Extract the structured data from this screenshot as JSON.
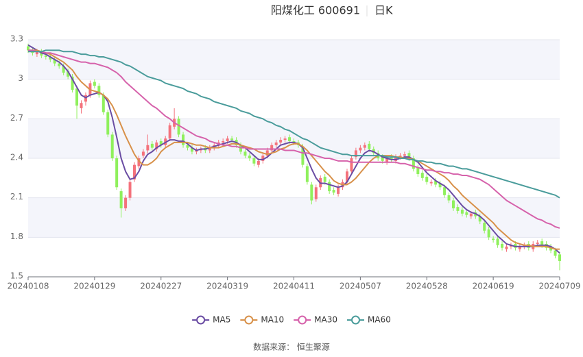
{
  "chart_data": {
    "type": "candlestick",
    "title": "阳煤化工 600691",
    "subtitle": "日K",
    "source": "数据来源： 恒生聚源",
    "categories": [
      "20240108",
      null,
      null,
      null,
      null,
      null,
      null,
      null,
      null,
      null,
      null,
      null,
      null,
      null,
      null,
      "20240129",
      null,
      null,
      null,
      null,
      null,
      null,
      null,
      null,
      null,
      null,
      null,
      null,
      null,
      null,
      "20240227",
      null,
      null,
      null,
      null,
      null,
      null,
      null,
      null,
      null,
      null,
      null,
      null,
      null,
      null,
      "20240319",
      null,
      null,
      null,
      null,
      null,
      null,
      null,
      null,
      null,
      null,
      null,
      null,
      null,
      null,
      "20240411",
      null,
      null,
      null,
      null,
      null,
      null,
      null,
      null,
      null,
      null,
      null,
      null,
      null,
      null,
      "20240507",
      null,
      null,
      null,
      null,
      null,
      null,
      null,
      null,
      null,
      null,
      null,
      null,
      null,
      null,
      "20240528",
      null,
      null,
      null,
      null,
      null,
      null,
      null,
      null,
      null,
      null,
      null,
      null,
      null,
      null,
      "20240619",
      null,
      null,
      null,
      null,
      null,
      null,
      null,
      null,
      null,
      null,
      null,
      null,
      null,
      null,
      "20240709"
    ],
    "open": [
      3.25,
      3.22,
      3.19,
      3.21,
      3.18,
      3.17,
      3.15,
      3.12,
      3.1,
      3.06,
      3.02,
      2.93,
      2.78,
      2.83,
      2.88,
      2.98,
      2.95,
      2.88,
      2.75,
      2.58,
      2.4,
      2.15,
      2.02,
      2.1,
      2.24,
      2.34,
      2.42,
      2.46,
      2.51,
      2.47,
      2.53,
      2.5,
      2.55,
      2.64,
      2.7,
      2.58,
      2.5,
      2.48,
      2.45,
      2.46,
      2.48,
      2.46,
      2.48,
      2.5,
      2.52,
      2.53,
      2.55,
      2.54,
      2.5,
      2.45,
      2.42,
      2.4,
      2.35,
      2.38,
      2.42,
      2.46,
      2.5,
      2.52,
      2.54,
      2.56,
      2.53,
      2.52,
      2.49,
      2.34,
      2.2,
      2.09,
      2.18,
      2.26,
      2.22,
      2.16,
      2.13,
      2.18,
      2.22,
      2.3,
      2.41,
      2.46,
      2.48,
      2.51,
      2.47,
      2.44,
      2.41,
      2.37,
      2.41,
      2.38,
      2.41,
      2.42,
      2.44,
      2.4,
      2.33,
      2.29,
      2.26,
      2.21,
      2.23,
      2.21,
      2.18,
      2.12,
      2.08,
      2.03,
      2.01,
      1.99,
      1.96,
      1.99,
      1.96,
      1.91,
      1.86,
      1.79,
      1.79,
      1.75,
      1.71,
      1.73,
      1.75,
      1.71,
      1.73,
      1.75,
      1.71,
      1.75,
      1.77,
      1.75,
      1.73,
      1.7,
      1.67
    ],
    "close": [
      3.22,
      3.2,
      3.21,
      3.18,
      3.17,
      3.15,
      3.12,
      3.1,
      3.05,
      3.02,
      2.92,
      2.8,
      2.82,
      2.88,
      2.97,
      2.95,
      2.88,
      2.75,
      2.58,
      2.4,
      2.18,
      2.02,
      2.1,
      2.22,
      2.35,
      2.4,
      2.45,
      2.5,
      2.48,
      2.52,
      2.5,
      2.55,
      2.65,
      2.7,
      2.58,
      2.5,
      2.48,
      2.45,
      2.46,
      2.47,
      2.46,
      2.48,
      2.5,
      2.52,
      2.53,
      2.55,
      2.54,
      2.5,
      2.45,
      2.42,
      2.4,
      2.36,
      2.38,
      2.42,
      2.46,
      2.5,
      2.52,
      2.54,
      2.55,
      2.53,
      2.52,
      2.5,
      2.35,
      2.22,
      2.08,
      2.18,
      2.25,
      2.22,
      2.15,
      2.14,
      2.18,
      2.22,
      2.3,
      2.4,
      2.46,
      2.48,
      2.5,
      2.47,
      2.44,
      2.4,
      2.38,
      2.4,
      2.39,
      2.41,
      2.42,
      2.43,
      2.4,
      2.32,
      2.28,
      2.25,
      2.22,
      2.22,
      2.2,
      2.18,
      2.12,
      2.08,
      2.02,
      2.0,
      1.98,
      1.97,
      1.98,
      1.96,
      1.92,
      1.85,
      1.8,
      1.78,
      1.74,
      1.72,
      1.73,
      1.74,
      1.72,
      1.73,
      1.74,
      1.72,
      1.75,
      1.76,
      1.74,
      1.72,
      1.7,
      1.66,
      1.62
    ],
    "low": [
      3.2,
      3.18,
      3.17,
      3.16,
      3.15,
      3.13,
      3.1,
      3.08,
      3.03,
      3.0,
      2.9,
      2.7,
      2.74,
      2.8,
      2.86,
      2.93,
      2.86,
      2.73,
      2.56,
      2.38,
      2.16,
      1.95,
      2.0,
      2.08,
      2.22,
      2.32,
      2.4,
      2.44,
      2.46,
      2.45,
      2.48,
      2.48,
      2.53,
      2.62,
      2.56,
      2.48,
      2.46,
      2.43,
      2.43,
      2.44,
      2.44,
      2.44,
      2.46,
      2.48,
      2.5,
      2.51,
      2.52,
      2.48,
      2.43,
      2.4,
      2.38,
      2.34,
      2.33,
      2.36,
      2.4,
      2.44,
      2.48,
      2.5,
      2.52,
      2.51,
      2.5,
      2.48,
      2.33,
      2.2,
      2.05,
      2.07,
      2.16,
      2.2,
      2.13,
      2.12,
      2.11,
      2.16,
      2.2,
      2.28,
      2.39,
      2.44,
      2.46,
      2.45,
      2.42,
      2.38,
      2.36,
      2.35,
      2.37,
      2.36,
      2.39,
      2.4,
      2.38,
      2.3,
      2.26,
      2.23,
      2.2,
      2.19,
      2.18,
      2.16,
      2.1,
      2.06,
      2.0,
      1.98,
      1.96,
      1.95,
      1.94,
      1.94,
      1.9,
      1.83,
      1.78,
      1.76,
      1.72,
      1.7,
      1.69,
      1.71,
      1.7,
      1.69,
      1.71,
      1.7,
      1.69,
      1.73,
      1.72,
      1.7,
      1.68,
      1.64,
      1.55
    ],
    "high": [
      3.27,
      3.24,
      3.23,
      3.23,
      3.2,
      3.19,
      3.17,
      3.14,
      3.12,
      3.08,
      3.04,
      2.95,
      2.84,
      2.9,
      2.99,
      3.0,
      2.97,
      2.9,
      2.77,
      2.6,
      2.42,
      2.17,
      2.12,
      2.24,
      2.37,
      2.42,
      2.47,
      2.58,
      2.53,
      2.54,
      2.55,
      2.57,
      2.67,
      2.78,
      2.72,
      2.6,
      2.52,
      2.5,
      2.48,
      2.49,
      2.5,
      2.5,
      2.52,
      2.54,
      2.55,
      2.57,
      2.57,
      2.56,
      2.52,
      2.47,
      2.44,
      2.42,
      2.4,
      2.44,
      2.48,
      2.52,
      2.54,
      2.56,
      2.57,
      2.58,
      2.55,
      2.54,
      2.51,
      2.36,
      2.22,
      2.2,
      2.27,
      2.28,
      2.24,
      2.18,
      2.2,
      2.24,
      2.32,
      2.42,
      2.48,
      2.5,
      2.52,
      2.53,
      2.49,
      2.46,
      2.43,
      2.42,
      2.43,
      2.43,
      2.44,
      2.45,
      2.46,
      2.42,
      2.35,
      2.31,
      2.28,
      2.24,
      2.25,
      2.23,
      2.2,
      2.14,
      2.1,
      2.05,
      2.03,
      2.01,
      2.0,
      2.01,
      1.98,
      1.93,
      1.88,
      1.81,
      1.81,
      1.77,
      1.75,
      1.76,
      1.77,
      1.75,
      1.76,
      1.77,
      1.77,
      1.78,
      1.79,
      1.77,
      1.75,
      1.72,
      1.69
    ],
    "up_color": "#f4727c",
    "down_color": "#8ff05c",
    "series": [
      {
        "name": "MA5",
        "color": "#6a4ca3",
        "values": [
          3.26,
          3.24,
          3.22,
          3.2,
          3.19,
          3.17,
          3.15,
          3.13,
          3.1,
          3.06,
          3.0,
          2.94,
          2.88,
          2.86,
          2.88,
          2.89,
          2.9,
          2.88,
          2.83,
          2.71,
          2.56,
          2.4,
          2.3,
          2.24,
          2.25,
          2.3,
          2.38,
          2.43,
          2.45,
          2.48,
          2.5,
          2.52,
          2.54,
          2.54,
          2.53,
          2.53,
          2.51,
          2.48,
          2.46,
          2.47,
          2.47,
          2.48,
          2.49,
          2.5,
          2.51,
          2.52,
          2.53,
          2.52,
          2.5,
          2.48,
          2.45,
          2.42,
          2.39,
          2.39,
          2.41,
          2.44,
          2.47,
          2.5,
          2.51,
          2.52,
          2.52,
          2.51,
          2.48,
          2.4,
          2.32,
          2.25,
          2.21,
          2.21,
          2.2,
          2.19,
          2.18,
          2.19,
          2.22,
          2.28,
          2.34,
          2.4,
          2.44,
          2.46,
          2.45,
          2.43,
          2.41,
          2.4,
          2.39,
          2.39,
          2.4,
          2.41,
          2.41,
          2.39,
          2.37,
          2.33,
          2.29,
          2.26,
          2.23,
          2.21,
          2.19,
          2.16,
          2.12,
          2.08,
          2.04,
          2.01,
          1.99,
          1.98,
          1.96,
          1.93,
          1.89,
          1.85,
          1.81,
          1.78,
          1.75,
          1.74,
          1.73,
          1.73,
          1.73,
          1.73,
          1.73,
          1.74,
          1.74,
          1.74,
          1.73,
          1.71,
          1.68
        ]
      },
      {
        "name": "MA10",
        "color": "#d8914a",
        "values": [
          3.22,
          3.22,
          3.22,
          3.21,
          3.2,
          3.19,
          3.17,
          3.15,
          3.13,
          3.1,
          3.07,
          3.02,
          2.98,
          2.95,
          2.92,
          2.91,
          2.9,
          2.88,
          2.85,
          2.8,
          2.73,
          2.65,
          2.57,
          2.5,
          2.43,
          2.38,
          2.35,
          2.35,
          2.37,
          2.4,
          2.45,
          2.48,
          2.5,
          2.52,
          2.52,
          2.52,
          2.52,
          2.51,
          2.5,
          2.5,
          2.49,
          2.48,
          2.48,
          2.48,
          2.49,
          2.5,
          2.51,
          2.51,
          2.5,
          2.49,
          2.48,
          2.47,
          2.45,
          2.44,
          2.43,
          2.44,
          2.45,
          2.47,
          2.48,
          2.5,
          2.51,
          2.51,
          2.49,
          2.46,
          2.42,
          2.38,
          2.34,
          2.3,
          2.27,
          2.23,
          2.21,
          2.2,
          2.2,
          2.22,
          2.25,
          2.29,
          2.33,
          2.37,
          2.4,
          2.42,
          2.42,
          2.42,
          2.42,
          2.41,
          2.41,
          2.4,
          2.4,
          2.39,
          2.38,
          2.36,
          2.34,
          2.32,
          2.3,
          2.28,
          2.26,
          2.23,
          2.19,
          2.16,
          2.12,
          2.09,
          2.06,
          2.03,
          2.0,
          1.97,
          1.94,
          1.91,
          1.87,
          1.84,
          1.81,
          1.78,
          1.76,
          1.75,
          1.74,
          1.74,
          1.73,
          1.73,
          1.73,
          1.73,
          1.72,
          1.71,
          1.71
        ]
      },
      {
        "name": "MA30",
        "color": "#d662ab",
        "values": [
          3.22,
          3.22,
          3.21,
          3.21,
          3.2,
          3.2,
          3.19,
          3.18,
          3.17,
          3.16,
          3.15,
          3.14,
          3.13,
          3.13,
          3.12,
          3.12,
          3.11,
          3.1,
          3.09,
          3.07,
          3.05,
          3.02,
          2.98,
          2.95,
          2.92,
          2.89,
          2.86,
          2.83,
          2.8,
          2.78,
          2.75,
          2.72,
          2.7,
          2.67,
          2.65,
          2.63,
          2.61,
          2.59,
          2.57,
          2.56,
          2.55,
          2.53,
          2.52,
          2.51,
          2.5,
          2.5,
          2.49,
          2.49,
          2.48,
          2.48,
          2.47,
          2.47,
          2.47,
          2.47,
          2.47,
          2.47,
          2.47,
          2.47,
          2.46,
          2.46,
          2.46,
          2.45,
          2.44,
          2.44,
          2.43,
          2.42,
          2.41,
          2.4,
          2.4,
          2.39,
          2.38,
          2.38,
          2.38,
          2.37,
          2.37,
          2.37,
          2.37,
          2.37,
          2.37,
          2.37,
          2.37,
          2.37,
          2.37,
          2.37,
          2.36,
          2.36,
          2.35,
          2.34,
          2.33,
          2.32,
          2.31,
          2.31,
          2.3,
          2.3,
          2.29,
          2.29,
          2.28,
          2.28,
          2.27,
          2.27,
          2.26,
          2.25,
          2.24,
          2.22,
          2.2,
          2.17,
          2.14,
          2.11,
          2.08,
          2.06,
          2.04,
          2.02,
          2.0,
          1.98,
          1.96,
          1.94,
          1.93,
          1.91,
          1.9,
          1.88,
          1.87
        ]
      },
      {
        "name": "MA60",
        "color": "#4a9c9b",
        "values": [
          3.21,
          3.21,
          3.21,
          3.21,
          3.22,
          3.22,
          3.22,
          3.22,
          3.21,
          3.21,
          3.21,
          3.2,
          3.19,
          3.19,
          3.18,
          3.18,
          3.17,
          3.17,
          3.16,
          3.15,
          3.14,
          3.13,
          3.11,
          3.1,
          3.08,
          3.06,
          3.04,
          3.02,
          3.01,
          3.0,
          2.99,
          2.97,
          2.96,
          2.95,
          2.94,
          2.93,
          2.91,
          2.9,
          2.89,
          2.87,
          2.86,
          2.85,
          2.83,
          2.82,
          2.81,
          2.8,
          2.79,
          2.78,
          2.76,
          2.75,
          2.74,
          2.72,
          2.71,
          2.7,
          2.68,
          2.67,
          2.65,
          2.64,
          2.62,
          2.61,
          2.59,
          2.57,
          2.55,
          2.54,
          2.52,
          2.5,
          2.48,
          2.47,
          2.46,
          2.45,
          2.44,
          2.43,
          2.43,
          2.42,
          2.42,
          2.42,
          2.42,
          2.42,
          2.42,
          2.42,
          2.42,
          2.41,
          2.41,
          2.41,
          2.4,
          2.4,
          2.39,
          2.39,
          2.38,
          2.38,
          2.37,
          2.37,
          2.36,
          2.36,
          2.35,
          2.34,
          2.34,
          2.33,
          2.32,
          2.32,
          2.31,
          2.3,
          2.29,
          2.28,
          2.27,
          2.26,
          2.25,
          2.24,
          2.23,
          2.22,
          2.21,
          2.2,
          2.19,
          2.18,
          2.17,
          2.16,
          2.15,
          2.14,
          2.13,
          2.12,
          2.1
        ]
      }
    ],
    "ylim": [
      1.5,
      3.3
    ],
    "yticks": [
      1.5,
      1.8,
      2.1,
      2.4,
      2.7,
      3,
      3.3
    ],
    "grid": true,
    "split_area": true,
    "band_color": "#f4f5fb",
    "legend": "bottom"
  }
}
